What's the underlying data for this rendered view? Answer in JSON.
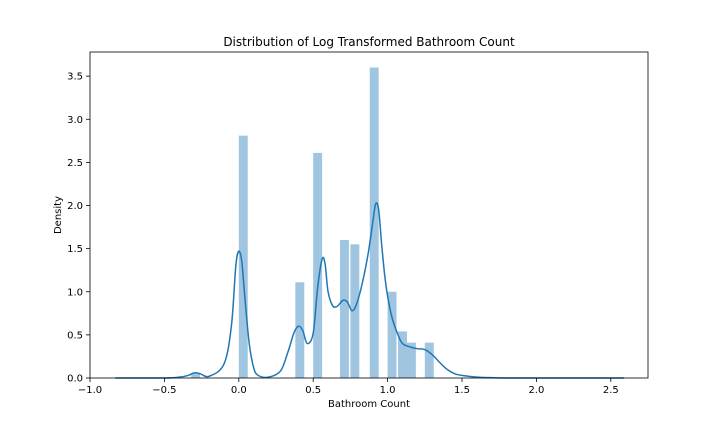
{
  "chart_data": {
    "type": "bar",
    "title": "Distribution of Log Transformed Bathroom Count",
    "xlabel": "Bathroom Count",
    "ylabel": "Density",
    "xlim": [
      -1.0,
      2.75
    ],
    "ylim": [
      0,
      3.78
    ],
    "xticks": [
      -1.0,
      -0.5,
      0.0,
      0.5,
      1.0,
      1.5,
      2.0,
      2.5
    ],
    "xtick_labels": [
      "−1.0",
      "−0.5",
      "0.0",
      "0.5",
      "1.0",
      "1.5",
      "2.0",
      "2.5"
    ],
    "yticks": [
      0.0,
      0.5,
      1.0,
      1.5,
      2.0,
      2.5,
      3.0,
      3.5
    ],
    "ytick_labels": [
      "0.0",
      "0.5",
      "1.0",
      "1.5",
      "2.0",
      "2.5",
      "3.0",
      "3.5"
    ],
    "grid": false,
    "histogram": {
      "color": "#9fc5e0",
      "bar_width": 0.06,
      "bins": [
        {
          "x": -0.29,
          "density": 0.06
        },
        {
          "x": 0.03,
          "density": 2.81
        },
        {
          "x": 0.41,
          "density": 1.11
        },
        {
          "x": 0.53,
          "density": 2.61
        },
        {
          "x": 0.71,
          "density": 1.6
        },
        {
          "x": 0.78,
          "density": 1.55
        },
        {
          "x": 0.91,
          "density": 3.6
        },
        {
          "x": 1.03,
          "density": 1.0
        },
        {
          "x": 1.1,
          "density": 0.54
        },
        {
          "x": 1.16,
          "density": 0.41
        },
        {
          "x": 1.28,
          "density": 0.41
        }
      ]
    },
    "kde": {
      "color": "#1f77b4",
      "x": [
        -0.83,
        -0.5,
        -0.4,
        -0.34,
        -0.3,
        -0.26,
        -0.2,
        -0.1,
        -0.05,
        -0.02,
        0.0,
        0.02,
        0.04,
        0.07,
        0.1,
        0.13,
        0.2,
        0.28,
        0.33,
        0.37,
        0.4,
        0.43,
        0.46,
        0.5,
        0.53,
        0.56,
        0.58,
        0.6,
        0.63,
        0.66,
        0.7,
        0.73,
        0.76,
        0.79,
        0.83,
        0.87,
        0.9,
        0.92,
        0.94,
        0.96,
        0.98,
        1.0,
        1.03,
        1.07,
        1.1,
        1.15,
        1.2,
        1.25,
        1.3,
        1.35,
        1.4,
        1.45,
        1.5,
        1.6,
        1.8,
        2.2,
        2.59
      ],
      "y": [
        0.0,
        0.0,
        0.01,
        0.03,
        0.06,
        0.05,
        0.02,
        0.16,
        0.6,
        1.3,
        1.47,
        1.35,
        0.95,
        0.4,
        0.12,
        0.03,
        0.01,
        0.08,
        0.3,
        0.52,
        0.6,
        0.55,
        0.4,
        0.52,
        1.05,
        1.38,
        1.32,
        1.0,
        0.84,
        0.83,
        0.9,
        0.88,
        0.78,
        0.85,
        1.1,
        1.45,
        1.8,
        2.02,
        1.95,
        1.55,
        1.2,
        0.95,
        0.7,
        0.5,
        0.4,
        0.36,
        0.34,
        0.33,
        0.27,
        0.18,
        0.1,
        0.05,
        0.03,
        0.01,
        0.0,
        0.0,
        0.0
      ]
    }
  }
}
